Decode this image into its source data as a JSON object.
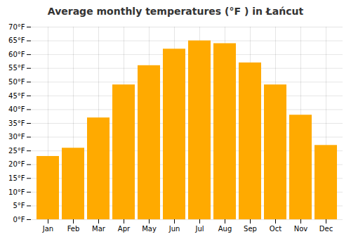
{
  "chart_data": {
    "type": "bar",
    "title": "Average monthly temperatures (°F ) in Łańcut",
    "categories": [
      "Jan",
      "Feb",
      "Mar",
      "Apr",
      "May",
      "Jun",
      "Jul",
      "Aug",
      "Sep",
      "Oct",
      "Nov",
      "Dec"
    ],
    "values": [
      23,
      26,
      37,
      49,
      56,
      62,
      65,
      64,
      57,
      49,
      38,
      27
    ],
    "color": "#FFAA00",
    "ylim": [
      0,
      70
    ],
    "yticks": [
      {
        "value": 0,
        "label": "0°F"
      },
      {
        "value": 5,
        "label": "5°F"
      },
      {
        "value": 10,
        "label": "10°F"
      },
      {
        "value": 15,
        "label": "15°F"
      },
      {
        "value": 20,
        "label": "20°F"
      },
      {
        "value": 25,
        "label": "25°F"
      },
      {
        "value": 30,
        "label": "30°F"
      },
      {
        "value": 35,
        "label": "35°F"
      },
      {
        "value": 40,
        "label": "40°F"
      },
      {
        "value": 45,
        "label": "45°F"
      },
      {
        "value": 50,
        "label": "50°F"
      },
      {
        "value": 55,
        "label": "55°F"
      },
      {
        "value": 60,
        "label": "60°F"
      },
      {
        "value": 65,
        "label": "65°F"
      },
      {
        "value": 70,
        "label": "70°F"
      }
    ],
    "grid": true
  }
}
